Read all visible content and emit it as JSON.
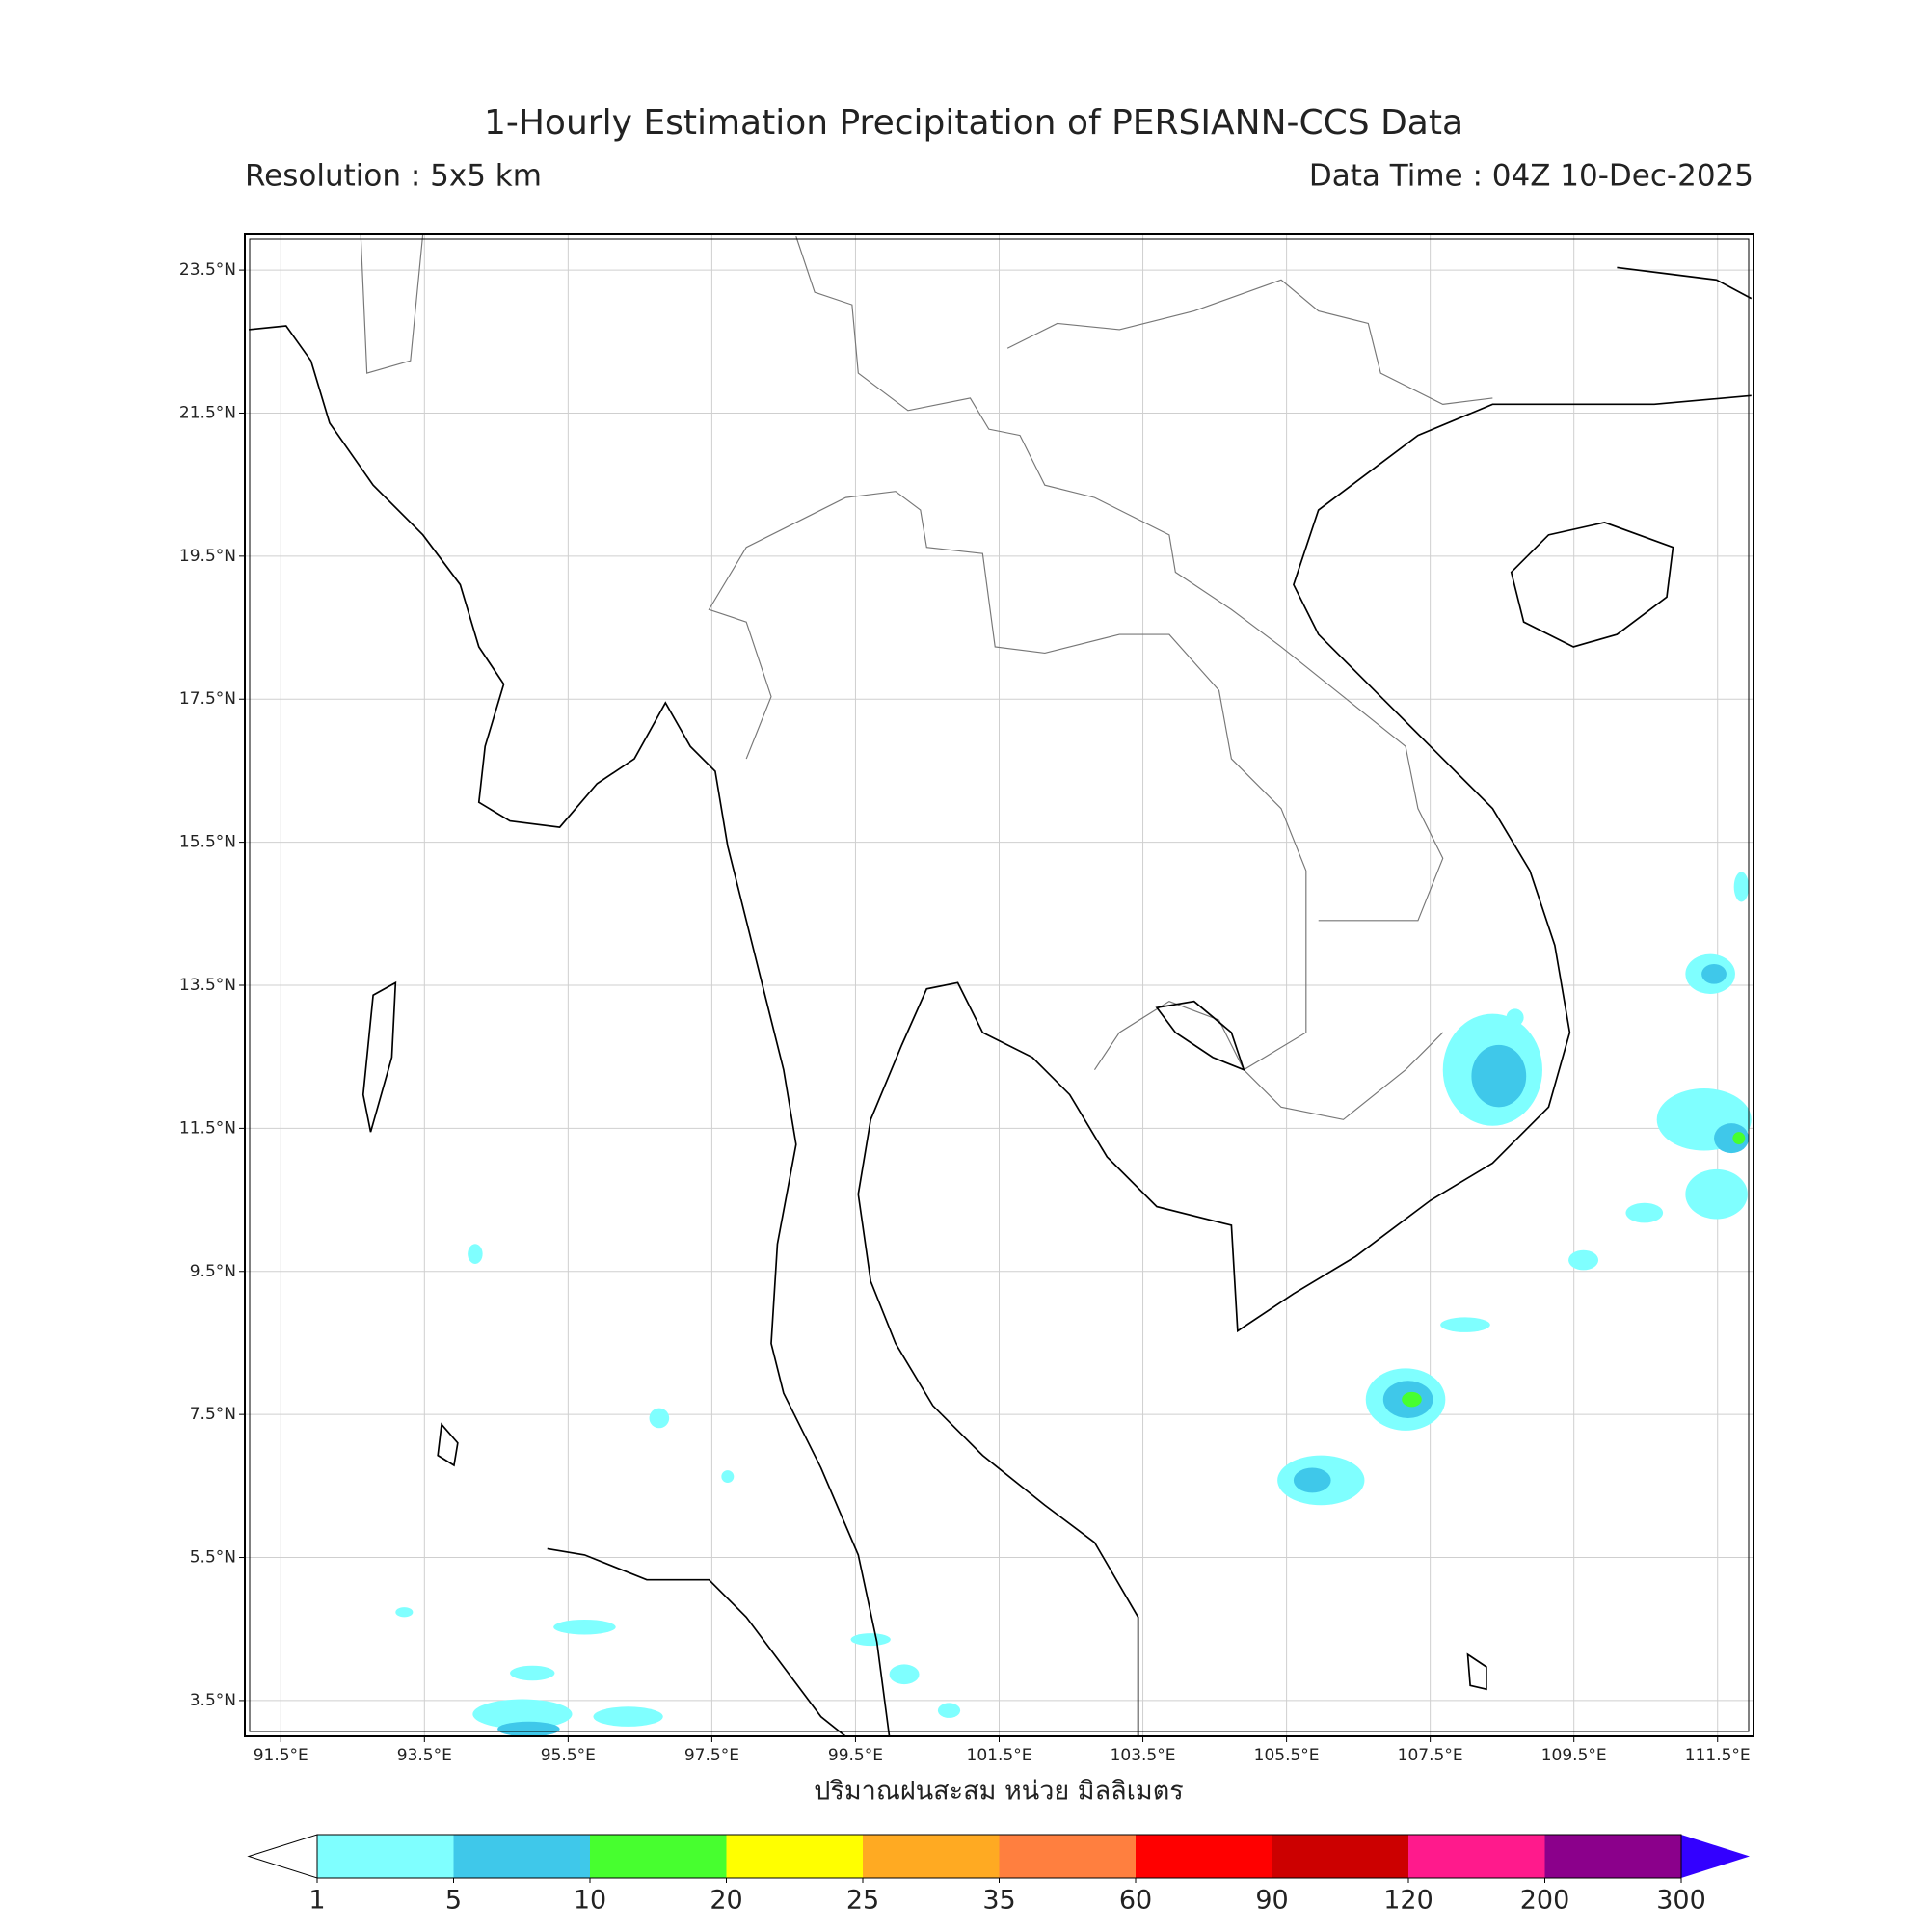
{
  "map": {
    "title": "1-Hourly Estimation Precipitation of PERSIANN-CCS Data",
    "resolution": "Resolution : 5x5 km",
    "data_time": "Data Time : 04Z 10-Dec-2025",
    "xlim": [
      91,
      112
    ],
    "ylim": [
      3,
      24
    ],
    "grid": true,
    "xticks": [
      {
        "value": 91.5,
        "label": "91.5°E"
      },
      {
        "value": 93.5,
        "label": "93.5°E"
      },
      {
        "value": 95.5,
        "label": "95.5°E"
      },
      {
        "value": 97.5,
        "label": "97.5°E"
      },
      {
        "value": 99.5,
        "label": "99.5°E"
      },
      {
        "value": 101.5,
        "label": "101.5°E"
      },
      {
        "value": 103.5,
        "label": "103.5°E"
      },
      {
        "value": 105.5,
        "label": "105.5°E"
      },
      {
        "value": 107.5,
        "label": "107.5°E"
      },
      {
        "value": 109.5,
        "label": "109.5°E"
      },
      {
        "value": 111.5,
        "label": "111.5°E"
      }
    ],
    "yticks": [
      {
        "value": 3.5,
        "label": "3.5°N"
      },
      {
        "value": 5.5,
        "label": "5.5°N"
      },
      {
        "value": 7.5,
        "label": "7.5°N"
      },
      {
        "value": 9.5,
        "label": "9.5°N"
      },
      {
        "value": 11.5,
        "label": "11.5°N"
      },
      {
        "value": 13.5,
        "label": "13.5°N"
      },
      {
        "value": 15.5,
        "label": "15.5°N"
      },
      {
        "value": 17.5,
        "label": "17.5°N"
      },
      {
        "value": 19.5,
        "label": "19.5°N"
      },
      {
        "value": 21.5,
        "label": "21.5°N"
      },
      {
        "value": 23.5,
        "label": "23.5°N"
      }
    ],
    "xlabel": "ปริมาณฝนสะสม หน่วย มิลลิเมตร",
    "colorbar": {
      "levels": [
        1,
        5,
        10,
        20,
        25,
        35,
        60,
        90,
        120,
        200,
        300
      ],
      "colors": [
        "#7fffff",
        "#3fc8ea",
        "#47ff2f",
        "#ffff00",
        "#ffaa22",
        "#ff7f3f",
        "#ff0000",
        "#cc0000",
        "#ff1a8c",
        "#8b008b"
      ],
      "under_color": "#ffffff",
      "over_color": "#3300ff"
    }
  }
}
